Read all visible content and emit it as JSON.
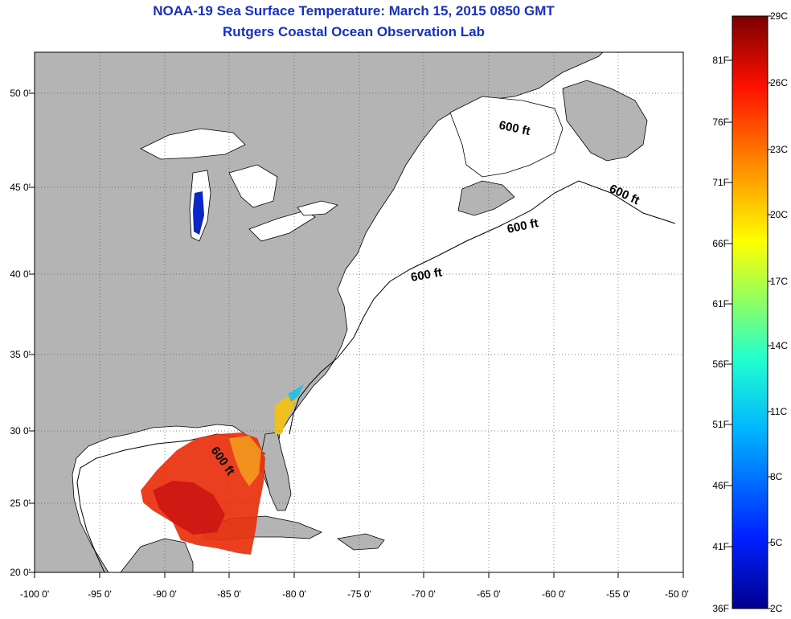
{
  "title_line1": "NOAA-19 Sea Surface Temperature:  March 15, 2015 0850 GMT",
  "title_line2": "Rutgers Coastal Ocean Observation Lab",
  "lat_labels": [
    "50 0'",
    "45 0'",
    "40 0'",
    "35 0'",
    "30 0'",
    "25 0'",
    "20 0'"
  ],
  "lon_labels": [
    "-100 0'",
    "-95 0'",
    "-90 0'",
    "-85 0'",
    "-80 0'",
    "-75 0'",
    "-70 0'",
    "-65 0'",
    "-60 0'",
    "-55 0'",
    "-50 0'"
  ],
  "contour_labels": [
    "600 ft",
    "600 ft",
    "600 ft",
    "600 ft",
    "600 ft"
  ],
  "colorbar": {
    "fahrenheit": [
      "81F",
      "76F",
      "71F",
      "66F",
      "61F",
      "56F",
      "51F",
      "46F",
      "41F",
      "36F"
    ],
    "celsius": [
      "29C",
      "26C",
      "23C",
      "20C",
      "17C",
      "14C",
      "11C",
      "8C",
      "5C",
      "2C"
    ]
  },
  "colors": {
    "land": "#b4b4b4",
    "ocean": "#ffffff",
    "title": "#1530c8",
    "grid": "#555555"
  }
}
